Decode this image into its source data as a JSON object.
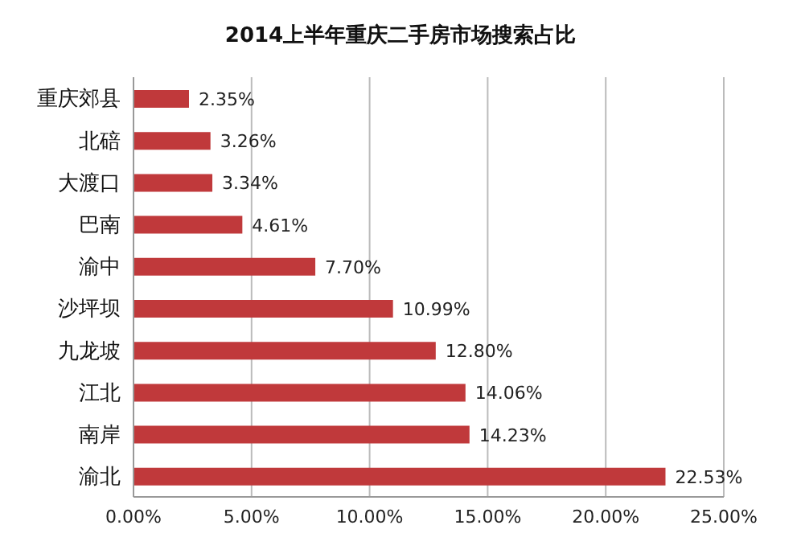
{
  "chart_data": {
    "type": "bar",
    "orientation": "horizontal",
    "title": "2014上半年重庆二手房市场搜索占比",
    "categories": [
      "重庆郊县",
      "北碚",
      "大渡口",
      "巴南",
      "渝中",
      "沙坪坝",
      "九龙坡",
      "江北",
      "南岸",
      "渝北"
    ],
    "values": [
      2.35,
      3.26,
      3.34,
      4.61,
      7.7,
      10.99,
      12.8,
      14.06,
      14.23,
      22.53
    ],
    "value_labels": [
      "2.35%",
      "3.26%",
      "3.34%",
      "4.61%",
      "7.70%",
      "10.99%",
      "12.80%",
      "14.06%",
      "14.23%",
      "22.53%"
    ],
    "color": "#c0393b",
    "xlim": [
      0,
      25
    ],
    "xticks": [
      {
        "value": 0,
        "label": "0.00%"
      },
      {
        "value": 5,
        "label": "5.00%"
      },
      {
        "value": 10,
        "label": "10.00%"
      },
      {
        "value": 15,
        "label": "15.00%"
      },
      {
        "value": 20,
        "label": "20.00%"
      },
      {
        "value": 25,
        "label": "25.00%"
      }
    ],
    "grid": "x",
    "legend": false
  }
}
